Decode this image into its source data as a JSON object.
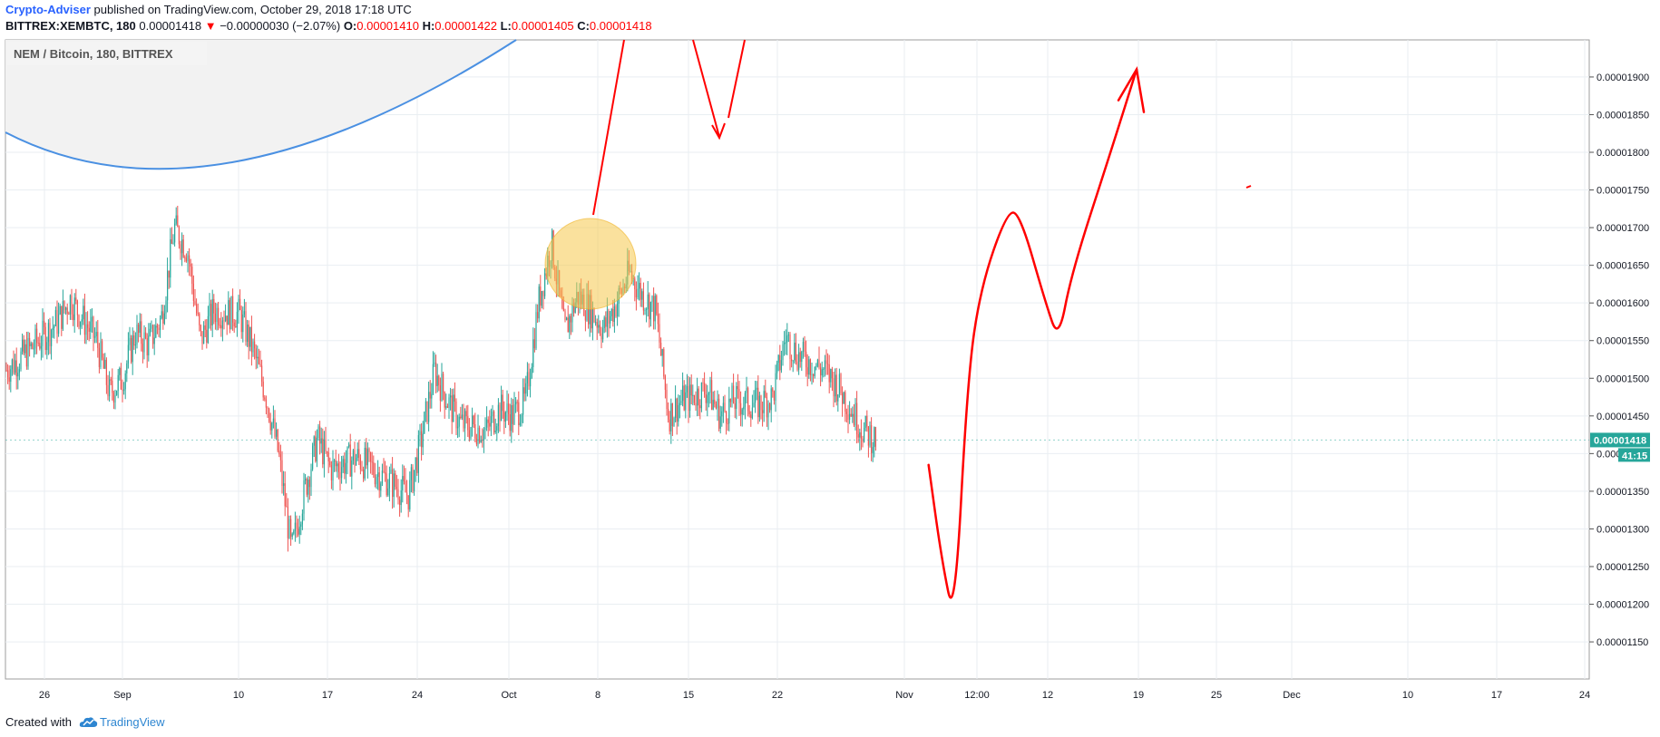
{
  "header": {
    "author": "Crypto-Adviser",
    "published_text": "published on TradingView.com, October 29, 2018 17:18 UTC",
    "symbol": "BITTREX:XEMBTC, 180",
    "last": "0.00001418",
    "change_arrow": "▼",
    "change": "−0.00000030 (−2.07%)",
    "open_label": "O:",
    "open": "0.00001410",
    "high_label": "H:",
    "high": "0.00001422",
    "low_label": "L:",
    "low": "0.00001405",
    "close_label": "C:",
    "close": "0.00001418",
    "down_color": "#ff0000"
  },
  "chart_data": {
    "type": "candlestick",
    "title": "NEM / Bitcoin, 180, BITTREX",
    "colors": {
      "up": "#26a69a",
      "down": "#ef5350",
      "drawing": "#ff0000",
      "arc": "#4a90e2",
      "highlight": "#f5c84c",
      "price_tag": "#26a69a"
    },
    "grid": true,
    "ylim": [
      1.12e-05,
      1.93e-05
    ],
    "y_ticks": [
      "0.00001150",
      "0.00001200",
      "0.00001250",
      "0.00001300",
      "0.00001350",
      "0.00001400",
      "0.00001450",
      "0.00001500",
      "0.00001550",
      "0.00001600",
      "0.00001650",
      "0.00001700",
      "0.00001750",
      "0.00001800",
      "0.00001850",
      "0.00001900"
    ],
    "x_ticks": [
      "26",
      "Sep",
      "10",
      "17",
      "24",
      "Oct",
      "8",
      "15",
      "22",
      "Nov",
      "12:00",
      "12",
      "19",
      "25",
      "Dec",
      "10",
      "17",
      "24"
    ],
    "price_tag": {
      "value": "0.00001418",
      "countdown": "41:15"
    },
    "price_path": [
      [
        "2018-08-23",
        1.51e-05
      ],
      [
        "2018-08-25",
        1.54e-05
      ],
      [
        "2018-08-27",
        1.575e-05
      ],
      [
        "2018-08-28",
        1.605e-05
      ],
      [
        "2018-08-30",
        1.55e-05
      ],
      [
        "2018-08-31",
        1.48e-05
      ],
      [
        "2018-09-01",
        1.5e-05
      ],
      [
        "2018-09-02",
        1.56e-05
      ],
      [
        "2018-09-03",
        1.545e-05
      ],
      [
        "2018-09-04",
        1.58e-05
      ],
      [
        "2018-09-05",
        1.7e-05
      ],
      [
        "2018-09-06",
        1.67e-05
      ],
      [
        "2018-09-07",
        1.55e-05
      ],
      [
        "2018-09-08",
        1.59e-05
      ],
      [
        "2018-09-10",
        1.585e-05
      ],
      [
        "2018-09-11",
        1.54e-05
      ],
      [
        "2018-09-12",
        1.48e-05
      ],
      [
        "2018-09-13",
        1.4e-05
      ],
      [
        "2018-09-14",
        1.27e-05
      ],
      [
        "2018-09-15",
        1.35e-05
      ],
      [
        "2018-09-16",
        1.42e-05
      ],
      [
        "2018-09-17",
        1.38e-05
      ],
      [
        "2018-09-19",
        1.395e-05
      ],
      [
        "2018-09-21",
        1.37e-05
      ],
      [
        "2018-09-23",
        1.345e-05
      ],
      [
        "2018-09-24",
        1.42e-05
      ],
      [
        "2018-09-25",
        1.51e-05
      ],
      [
        "2018-09-26",
        1.47e-05
      ],
      [
        "2018-09-27",
        1.44e-05
      ],
      [
        "2018-09-29",
        1.43e-05
      ],
      [
        "2018-09-30",
        1.46e-05
      ],
      [
        "2018-10-01",
        1.45e-05
      ],
      [
        "2018-10-02",
        1.47e-05
      ],
      [
        "2018-10-03",
        1.6e-05
      ],
      [
        "2018-10-04",
        1.68e-05
      ],
      [
        "2018-10-05",
        1.56e-05
      ],
      [
        "2018-10-06",
        1.61e-05
      ],
      [
        "2018-10-07",
        1.59e-05
      ],
      [
        "2018-10-08",
        1.565e-05
      ],
      [
        "2018-10-09",
        1.6e-05
      ],
      [
        "2018-10-10",
        1.64e-05
      ],
      [
        "2018-10-11",
        1.61e-05
      ],
      [
        "2018-10-12",
        1.59e-05
      ],
      [
        "2018-10-13",
        1.45e-05
      ],
      [
        "2018-10-14",
        1.47e-05
      ],
      [
        "2018-10-16",
        1.485e-05
      ],
      [
        "2018-10-17",
        1.45e-05
      ],
      [
        "2018-10-18",
        1.47e-05
      ],
      [
        "2018-10-20",
        1.465e-05
      ],
      [
        "2018-10-21",
        1.475e-05
      ],
      [
        "2018-10-22",
        1.555e-05
      ],
      [
        "2018-10-23",
        1.53e-05
      ],
      [
        "2018-10-24",
        1.52e-05
      ],
      [
        "2018-10-25",
        1.51e-05
      ],
      [
        "2018-10-26",
        1.49e-05
      ],
      [
        "2018-10-27",
        1.46e-05
      ],
      [
        "2018-10-28",
        1.43e-05
      ],
      [
        "2018-10-29",
        1.418e-05
      ]
    ],
    "annotations": {
      "forecast_curve": [
        [
          "2018-11-02",
          1.385e-05
        ],
        [
          "2018-11-03",
          1.26e-05
        ],
        [
          "2018-11-04",
          1.175e-05
        ],
        [
          "2018-11-05",
          1.5e-05
        ],
        [
          "2018-11-06",
          1.62e-05
        ],
        [
          "2018-11-08",
          1.72e-05
        ],
        [
          "2018-11-09",
          1.72e-05
        ],
        [
          "2018-11-11",
          1.6e-05
        ],
        [
          "2018-11-12",
          1.55e-05
        ],
        [
          "2018-11-13",
          1.64e-05
        ],
        [
          "2018-11-16",
          1.8e-05
        ],
        [
          "2018-11-18",
          1.91e-05
        ]
      ],
      "circle_center": [
        "2018-10-07",
        1.652e-05
      ]
    }
  },
  "footer": {
    "created_with": "Created with",
    "brand": "TradingView"
  }
}
